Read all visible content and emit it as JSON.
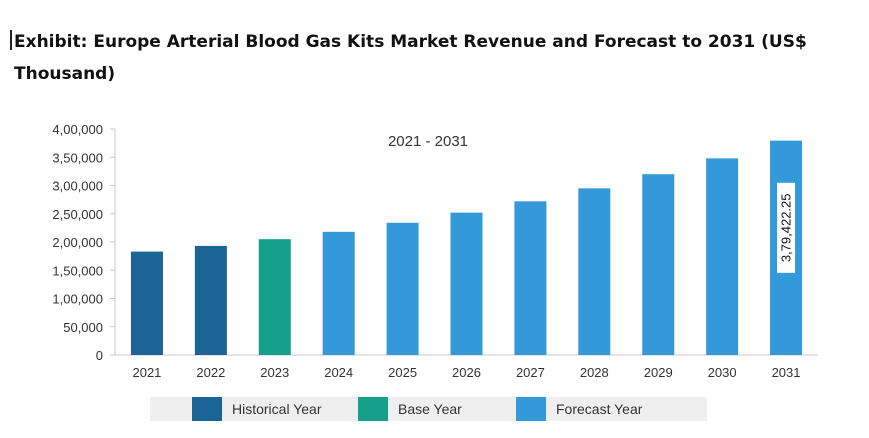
{
  "title": "Exhibit: Europe Arterial Blood Gas Kits Market Revenue and Forecast to 2031 (US$ Thousand)",
  "chart_data": {
    "type": "bar",
    "annotation": "2021 - 2031",
    "categories": [
      "2021",
      "2022",
      "2023",
      "2024",
      "2025",
      "2026",
      "2027",
      "2028",
      "2029",
      "2030",
      "2031"
    ],
    "values": [
      183000,
      193000,
      205000,
      218000,
      234000,
      252000,
      272000,
      295000,
      320000,
      348000,
      379422.25
    ],
    "bar_types": [
      "Historical Year",
      "Historical Year",
      "Base Year",
      "Forecast Year",
      "Forecast Year",
      "Forecast Year",
      "Forecast Year",
      "Forecast Year",
      "Forecast Year",
      "Forecast Year",
      "Forecast Year"
    ],
    "data_label": {
      "category": "2031",
      "text": "3,79,422.25"
    },
    "ylim": [
      0,
      400000
    ],
    "yticks": [
      0,
      50000,
      100000,
      150000,
      200000,
      250000,
      300000,
      350000,
      400000
    ],
    "ytick_labels": [
      "0",
      "50,000",
      "1,00,000",
      "1,50,000",
      "2,00,000",
      "2,50,000",
      "3,00,000",
      "3,50,000",
      "4,00,000"
    ],
    "xlabel": "",
    "ylabel": "",
    "grid": false,
    "legend_position": "bottom",
    "legend": [
      {
        "name": "Historical Year",
        "color": "#1a6496"
      },
      {
        "name": "Base Year",
        "color": "#14a08a"
      },
      {
        "name": "Forecast Year",
        "color": "#3399d9"
      }
    ]
  }
}
